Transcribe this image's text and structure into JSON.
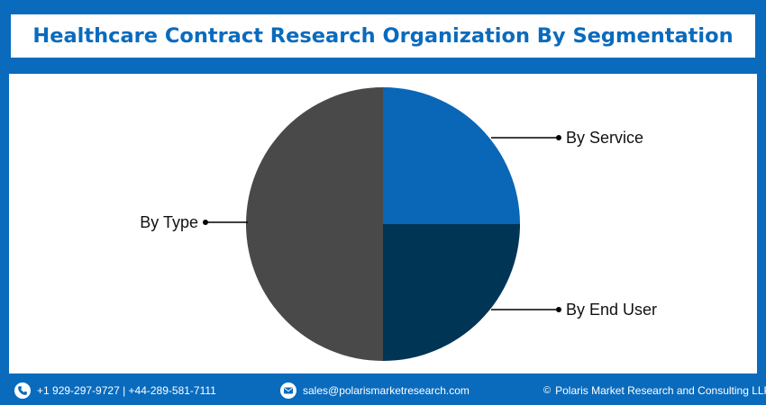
{
  "header": {
    "title": "Healthcare Contract Research Organization By Segmentation"
  },
  "colors": {
    "brand_blue": "#0a6bbd",
    "service": "#0a66b7",
    "end_user": "#013556",
    "type": "#494949"
  },
  "chart_data": {
    "type": "pie",
    "title": "Healthcare Contract Research Organization By Segmentation",
    "slices": [
      {
        "label": "By Service",
        "value": 25,
        "color": "#0a66b7"
      },
      {
        "label": "By End User",
        "value": 25,
        "color": "#013556"
      },
      {
        "label": "By Type",
        "value": 50,
        "color": "#494949"
      }
    ],
    "start_angle": "12 o'clock",
    "direction": "clockwise",
    "legend": "none (callout labels)"
  },
  "footer": {
    "phone": "+1 929-297-9727 | +44-289-581-7111",
    "email": "sales@polarismarketresearch.com",
    "copyright_symbol": "©",
    "copyright": "Polaris Market Research and Consulting LLP",
    "phone_icon": "phone-icon",
    "email_icon": "envelope-icon"
  }
}
